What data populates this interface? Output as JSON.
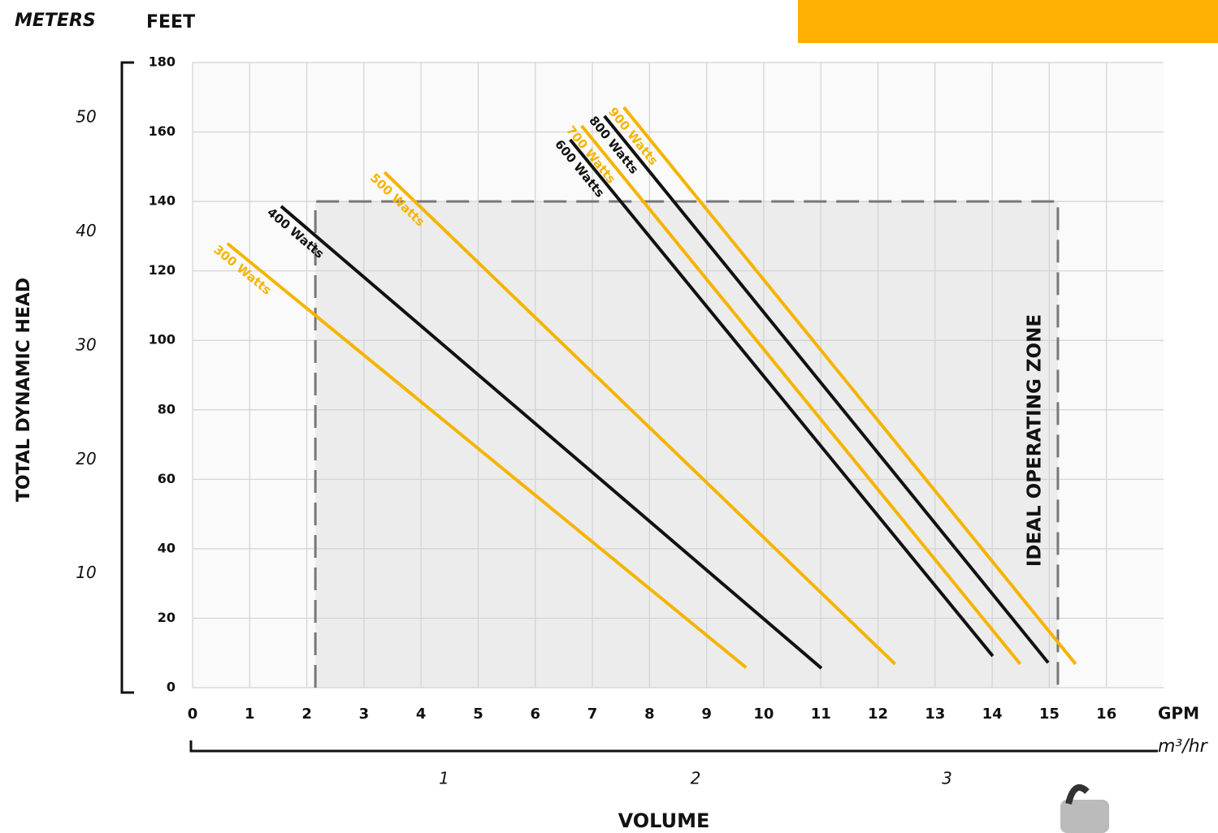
{
  "chart_data": {
    "type": "line",
    "y_label_left": "METERS",
    "y_label_right": "FEET",
    "y_title": "TOTAL DYNAMIC HEAD",
    "x_unit": "GPM",
    "x2_unit": "m³/hr",
    "x_title": "VOLUME",
    "xlim": [
      0,
      17
    ],
    "xticks": [
      0,
      1,
      2,
      3,
      4,
      5,
      6,
      7,
      8,
      9,
      10,
      11,
      12,
      13,
      14,
      15,
      16
    ],
    "x2lim": [
      0,
      3.861
    ],
    "x2ticks": [
      1,
      2,
      3
    ],
    "ylim": [
      0,
      180
    ],
    "yticks": [
      0,
      20,
      40,
      60,
      80,
      100,
      120,
      140,
      160,
      180
    ],
    "y2lim": [
      0,
      54.86
    ],
    "y2ticks": [
      10,
      20,
      30,
      40,
      50
    ],
    "grid": true,
    "zone": {
      "label": "IDEAL OPERATING ZONE",
      "x": [
        2.15,
        15.15
      ],
      "y": [
        0,
        140
      ]
    },
    "series": [
      {
        "name": "300 Watts",
        "color": "#f5b400",
        "x": [
          0.61,
          9.69
        ],
        "values": [
          127.9,
          5.8
        ]
      },
      {
        "name": "400 Watts",
        "color": "#111111",
        "x": [
          1.55,
          11.01
        ],
        "values": [
          138.6,
          5.6
        ]
      },
      {
        "name": "500 Watts",
        "color": "#f5b400",
        "x": [
          3.36,
          12.3
        ],
        "values": [
          148.4,
          6.8
        ]
      },
      {
        "name": "600 Watts",
        "color": "#111111",
        "x": [
          6.61,
          14.01
        ],
        "values": [
          157.8,
          9.1
        ]
      },
      {
        "name": "700 Watts",
        "color": "#f5b400",
        "x": [
          6.81,
          14.49
        ],
        "values": [
          161.8,
          6.8
        ]
      },
      {
        "name": "800 Watts",
        "color": "#111111",
        "x": [
          7.21,
          14.98
        ],
        "values": [
          164.6,
          7.2
        ]
      },
      {
        "name": "900 Watts",
        "color": "#f5b400",
        "x": [
          7.55,
          15.46
        ],
        "values": [
          167.1,
          6.8
        ]
      }
    ]
  }
}
